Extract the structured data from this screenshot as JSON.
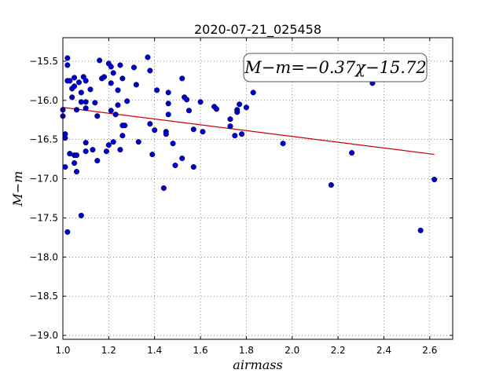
{
  "chart_data": {
    "type": "scatter",
    "title": "2020-07-21_025458",
    "xlabel": "airmass",
    "ylabel": "M−m",
    "xlim": [
      1.0,
      2.7
    ],
    "ylim": [
      -19.05,
      -15.2
    ],
    "y_inverted": true,
    "xticks": [
      1.0,
      1.2,
      1.4,
      1.6,
      1.8,
      2.0,
      2.2,
      2.4,
      2.6
    ],
    "xtick_labels": [
      "1.0",
      "1.2",
      "1.4",
      "1.6",
      "1.8",
      "2.0",
      "2.2",
      "2.4",
      "2.6"
    ],
    "yticks": [
      -15.5,
      -16.0,
      -16.5,
      -17.0,
      -17.5,
      -18.0,
      -18.5,
      -19.0
    ],
    "ytick_labels": [
      "−15.5",
      "−16.0",
      "−16.5",
      "−17.0",
      "−17.5",
      "−18.0",
      "−18.5",
      "−19.0"
    ],
    "grid": true,
    "annotation": "M−m=−0.37χ−15.72",
    "point_color": "#0000cc",
    "fit_color": "#cc0000",
    "fit": {
      "slope": -0.37,
      "intercept": -15.72,
      "x_range": [
        1.0,
        2.62
      ]
    },
    "points": [
      [
        1.0,
        -16.12
      ],
      [
        1.0,
        -16.2
      ],
      [
        1.01,
        -16.43
      ],
      [
        1.01,
        -16.48
      ],
      [
        1.01,
        -16.85
      ],
      [
        1.02,
        -15.46
      ],
      [
        1.02,
        -15.55
      ],
      [
        1.02,
        -15.75
      ],
      [
        1.02,
        -17.68
      ],
      [
        1.03,
        -15.75
      ],
      [
        1.03,
        -16.68
      ],
      [
        1.04,
        -15.85
      ],
      [
        1.04,
        -15.96
      ],
      [
        1.05,
        -15.71
      ],
      [
        1.05,
        -15.82
      ],
      [
        1.05,
        -16.8
      ],
      [
        1.05,
        -16.7
      ],
      [
        1.06,
        -16.91
      ],
      [
        1.06,
        -16.12
      ],
      [
        1.06,
        -16.7
      ],
      [
        1.07,
        -15.77
      ],
      [
        1.08,
        -16.02
      ],
      [
        1.08,
        -15.9
      ],
      [
        1.08,
        -17.47
      ],
      [
        1.09,
        -15.7
      ],
      [
        1.1,
        -15.75
      ],
      [
        1.1,
        -16.02
      ],
      [
        1.1,
        -16.1
      ],
      [
        1.1,
        -16.54
      ],
      [
        1.1,
        -16.65
      ],
      [
        1.12,
        -15.86
      ],
      [
        1.13,
        -16.63
      ],
      [
        1.14,
        -16.03
      ],
      [
        1.15,
        -16.2
      ],
      [
        1.15,
        -16.77
      ],
      [
        1.16,
        -15.49
      ],
      [
        1.17,
        -15.72
      ],
      [
        1.18,
        -15.7
      ],
      [
        1.19,
        -16.65
      ],
      [
        1.2,
        -15.53
      ],
      [
        1.2,
        -16.57
      ],
      [
        1.21,
        -15.57
      ],
      [
        1.21,
        -15.78
      ],
      [
        1.21,
        -16.13
      ],
      [
        1.22,
        -15.65
      ],
      [
        1.22,
        -16.53
      ],
      [
        1.23,
        -16.18
      ],
      [
        1.24,
        -15.87
      ],
      [
        1.24,
        -16.06
      ],
      [
        1.25,
        -15.55
      ],
      [
        1.25,
        -16.63
      ],
      [
        1.26,
        -15.72
      ],
      [
        1.26,
        -16.32
      ],
      [
        1.26,
        -16.45
      ],
      [
        1.27,
        -16.32
      ],
      [
        1.28,
        -16.01
      ],
      [
        1.31,
        -15.58
      ],
      [
        1.32,
        -15.8
      ],
      [
        1.33,
        -16.53
      ],
      [
        1.37,
        -15.45
      ],
      [
        1.38,
        -15.62
      ],
      [
        1.38,
        -16.3
      ],
      [
        1.39,
        -16.69
      ],
      [
        1.4,
        -16.38
      ],
      [
        1.41,
        -15.87
      ],
      [
        1.44,
        -17.12
      ],
      [
        1.45,
        -16.4
      ],
      [
        1.45,
        -16.43
      ],
      [
        1.46,
        -15.9
      ],
      [
        1.46,
        -16.04
      ],
      [
        1.46,
        -16.18
      ],
      [
        1.48,
        -16.55
      ],
      [
        1.49,
        -16.83
      ],
      [
        1.52,
        -15.72
      ],
      [
        1.52,
        -16.74
      ],
      [
        1.53,
        -15.96
      ],
      [
        1.54,
        -15.99
      ],
      [
        1.55,
        -16.13
      ],
      [
        1.57,
        -16.37
      ],
      [
        1.57,
        -16.85
      ],
      [
        1.6,
        -16.02
      ],
      [
        1.61,
        -16.4
      ],
      [
        1.66,
        -16.08
      ],
      [
        1.67,
        -16.11
      ],
      [
        1.73,
        -16.24
      ],
      [
        1.73,
        -16.33
      ],
      [
        1.75,
        -16.45
      ],
      [
        1.76,
        -16.15
      ],
      [
        1.76,
        -16.12
      ],
      [
        1.77,
        -16.05
      ],
      [
        1.78,
        -16.43
      ],
      [
        1.8,
        -16.09
      ],
      [
        1.83,
        -15.9
      ],
      [
        1.96,
        -16.55
      ],
      [
        2.17,
        -17.08
      ],
      [
        2.26,
        -16.67
      ],
      [
        2.35,
        -15.78
      ],
      [
        2.56,
        -17.66
      ],
      [
        2.62,
        -17.01
      ]
    ]
  }
}
